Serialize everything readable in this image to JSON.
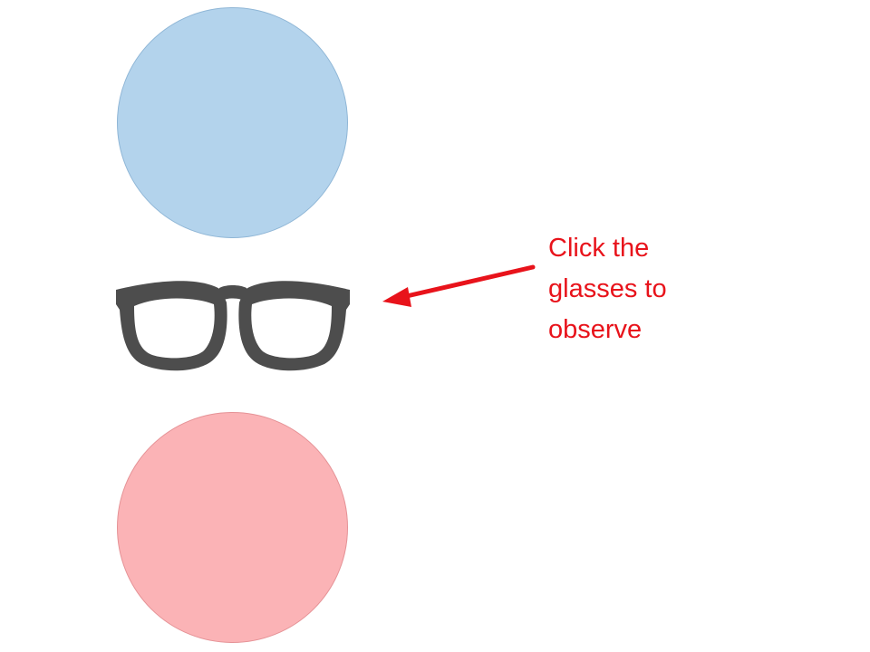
{
  "slide": {
    "top_circle_color": "#b3d3ec",
    "bottom_circle_color": "#fbb3b6",
    "glasses_icon": "glasses-icon",
    "glasses_color": "#4d4d4d",
    "arrow_color": "#e8131b",
    "instruction": {
      "line1": "Click the",
      "line2": "glasses  to",
      "line3": "observe",
      "color": "#e8131b"
    }
  }
}
